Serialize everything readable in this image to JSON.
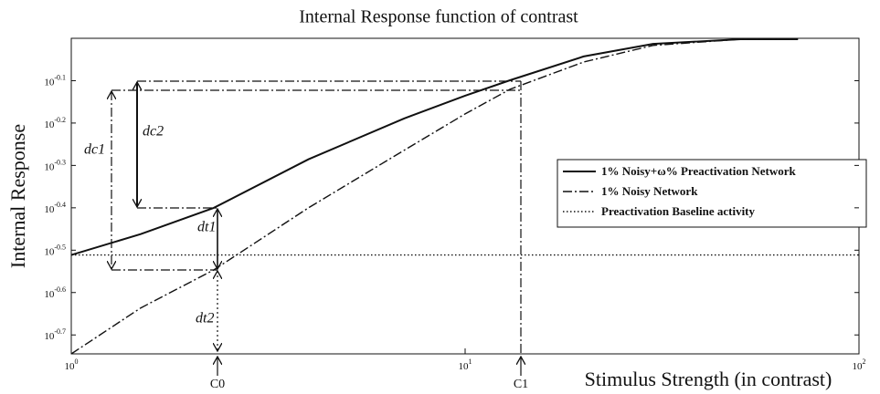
{
  "chart_data": {
    "type": "line",
    "title": "Internal Response function of contrast",
    "xlabel": "Stimulus Strength (in contrast)",
    "ylabel": "Internal Response",
    "xscale": "log",
    "yscale": "log",
    "xlim": [
      1,
      100
    ],
    "ylim": [
      0.18,
      1.0
    ],
    "xticks": [
      {
        "value": 1,
        "label": "10^0"
      },
      {
        "value": 10,
        "label": "10^1"
      },
      {
        "value": 100,
        "label": "10^2"
      }
    ],
    "yticks": [
      {
        "value": 0.1995,
        "label": "10^-0.7"
      },
      {
        "value": 0.2512,
        "label": "10^-0.6"
      },
      {
        "value": 0.3162,
        "label": "10^-0.5"
      },
      {
        "value": 0.3981,
        "label": "10^-0.4"
      },
      {
        "value": 0.5012,
        "label": "10^-0.3"
      },
      {
        "value": 0.631,
        "label": "10^-0.2"
      },
      {
        "value": 0.7943,
        "label": "10^-0.1"
      }
    ],
    "legend": "right",
    "series": [
      {
        "name": "1% Noisy+ω% Preactivation Network",
        "color": "#111111",
        "style": "solid",
        "x": [
          1,
          1.5,
          2.3,
          4,
          7,
          10,
          13,
          20,
          30,
          50,
          70
        ],
        "values": [
          0.308,
          0.345,
          0.398,
          0.518,
          0.647,
          0.732,
          0.796,
          0.906,
          0.97,
          0.995,
          0.995
        ]
      },
      {
        "name": "1% Noisy Network",
        "color": "#111111",
        "style": "dashdot",
        "x": [
          1,
          1.5,
          2.3,
          4,
          7,
          10,
          13,
          20,
          30,
          50,
          70
        ],
        "values": [
          0.18,
          0.231,
          0.284,
          0.398,
          0.544,
          0.663,
          0.758,
          0.879,
          0.962,
          0.995,
          0.995
        ]
      },
      {
        "name": "Preactivation Baseline activity",
        "color": "#111111",
        "style": "dotted",
        "x": [
          1,
          100
        ],
        "values": [
          0.308,
          0.308
        ]
      }
    ],
    "annotations": [
      "dc1",
      "dc2",
      "dt1",
      "dt2",
      "C0",
      "C1"
    ]
  }
}
